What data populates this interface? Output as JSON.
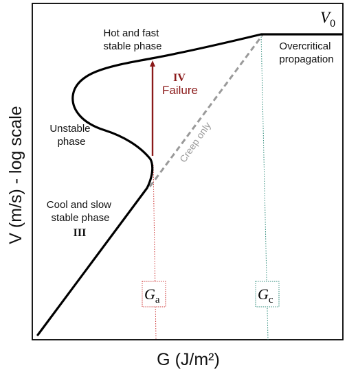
{
  "axes": {
    "xlabel": "G (J/m²)",
    "ylabel": "V (m/s) - log scale"
  },
  "labels": {
    "v0": "V",
    "v0_sub": "0",
    "hot_phase": [
      "Hot and fast",
      "stable phase"
    ],
    "overcritical": [
      "Overcritical",
      "propagation"
    ],
    "unstable": [
      "Unstable",
      "phase"
    ],
    "cool_phase": [
      "Cool and slow",
      "stable phase"
    ],
    "roman_three": "III",
    "roman_four": "IV",
    "failure": "Failure",
    "creep": "Creep only",
    "ga": "G",
    "ga_sub": "a",
    "gc": "G",
    "gc_sub": "c"
  },
  "colors": {
    "curve": "#000000",
    "failure": "#8b1a1a",
    "creep": "#9a9a9a",
    "ga_line": "#cc3333",
    "gc_line": "#2e8b7a"
  }
}
